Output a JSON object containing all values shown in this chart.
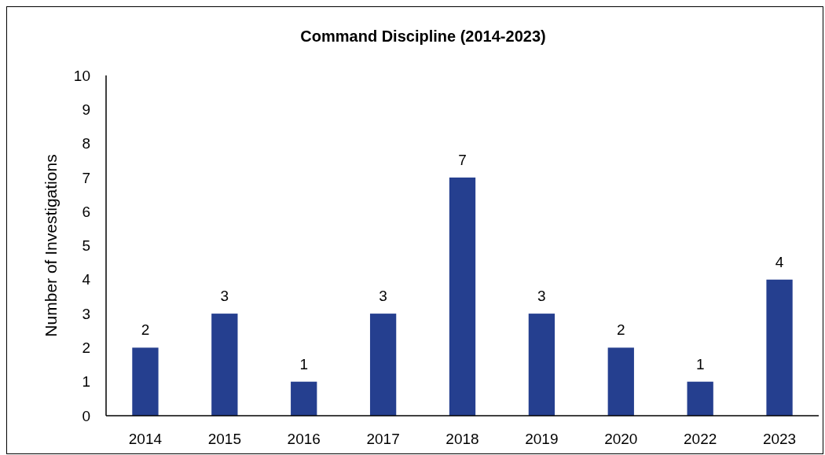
{
  "chart_data": {
    "type": "bar",
    "title": "Command Discipline (2014-2023)",
    "ylabel": "Number of Investigations",
    "categories": [
      "2014",
      "2015",
      "2016",
      "2017",
      "2018",
      "2019",
      "2020",
      "2022",
      "2023"
    ],
    "values": [
      2,
      3,
      1,
      3,
      7,
      3,
      2,
      1,
      4
    ],
    "color": "#253f8f",
    "ylim": [
      0,
      10
    ],
    "yticks": [
      0,
      1,
      2,
      3,
      4,
      5,
      6,
      7,
      8,
      9,
      10
    ],
    "data_labels": true,
    "grid": false
  }
}
